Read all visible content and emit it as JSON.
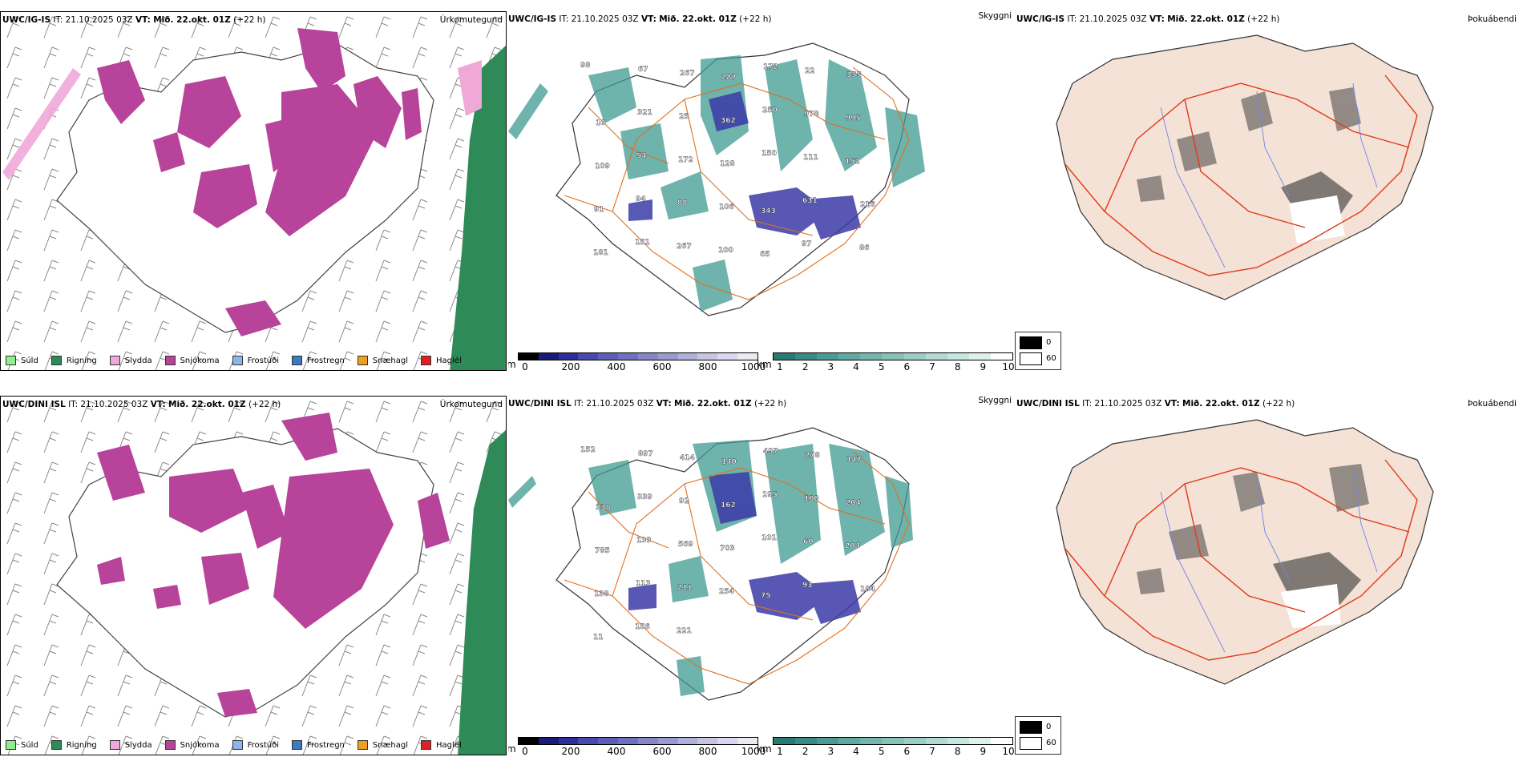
{
  "rows": [
    {
      "model": "UWC/IG-IS",
      "it_label": "IT:",
      "it_value": "21.10.2025 03Z",
      "vt_label": "VT:",
      "vt_value": "Mið. 22.okt. 01Z",
      "lead": "(+22 h)",
      "labels_mountain": [
        "98",
        "67",
        "267",
        "287",
        "172",
        "22",
        "355",
        "10",
        "321",
        "25",
        "362",
        "250",
        "978",
        "995",
        "109",
        "54",
        "172",
        "128",
        "150",
        "111",
        "152",
        "91",
        "94",
        "88",
        "106",
        "343",
        "631",
        "216",
        "181",
        "151",
        "267",
        "100",
        "65",
        "97",
        "86"
      ]
    },
    {
      "model": "UWC/DINI ISL",
      "it_label": "IT:",
      "it_value": "21.10.2025 03Z",
      "vt_label": "VT:",
      "vt_value": "Mið. 22.okt. 01Z",
      "lead": "(+22 h)",
      "labels_mountain": [
        "152",
        "897",
        "414",
        "140",
        "497",
        "278",
        "147",
        "338",
        "339",
        "92",
        "162",
        "195",
        "100",
        "204",
        "785",
        "133",
        "569",
        "703",
        "101",
        "60",
        "204",
        "138",
        "113",
        "211",
        "254",
        "75",
        "93",
        "184",
        "11",
        "156",
        "221"
      ]
    }
  ],
  "panel_titles": {
    "precip": "Úrkomutegund",
    "cloud": "Skyggni",
    "fog": "Þokuábendi"
  },
  "precip_legend": [
    {
      "label": "Súld",
      "color": "#90ee90"
    },
    {
      "label": "Rigning",
      "color": "#2e8b57"
    },
    {
      "label": "Slydda",
      "color": "#f0a8d8"
    },
    {
      "label": "Snjókoma",
      "color": "#b8439a"
    },
    {
      "label": "Frostúði",
      "color": "#87b8e8"
    },
    {
      "label": "Frostregn",
      "color": "#3a7ac0"
    },
    {
      "label": "Snæhagl",
      "color": "#f0a020"
    },
    {
      "label": "Haglél",
      "color": "#e02020"
    }
  ],
  "colors": {
    "snow": "#b8439a",
    "rain": "#2e8b57",
    "sleet": "#f0a8d8",
    "cloud_teal": "#3f9a92",
    "cloud_blue": "#3b3ba8",
    "road": "#e07020",
    "land_fog": "#f4e2d6",
    "road_fog": "#e03818",
    "river": "#6f86e8"
  },
  "colorbar_height": {
    "unit": "m",
    "ticks": [
      "0",
      "200",
      "400",
      "600",
      "800",
      "1000"
    ],
    "colors": [
      "#000000",
      "#1a1a78",
      "#2e2e9a",
      "#4848b0",
      "#5e5eb8",
      "#7070c0",
      "#8686c8",
      "#9a9ad0",
      "#b0b0da",
      "#c6c6e4",
      "#d8d8ee",
      "#ebebf6"
    ]
  },
  "colorbar_vis": {
    "unit": "km",
    "ticks": [
      "1",
      "2",
      "3",
      "4",
      "5",
      "6",
      "7",
      "8",
      "9",
      "10"
    ],
    "colors": [
      "#2a7a74",
      "#3a8a84",
      "#4b9a93",
      "#5faaa2",
      "#72b6ae",
      "#86c2ba",
      "#9ccec6",
      "#b2dad3",
      "#c8e6e0",
      "#dff1ec",
      "#ffffff"
    ]
  },
  "fog_legend": [
    {
      "label": "0",
      "color": "#000000"
    },
    {
      "label": "60",
      "color": "#ffffff"
    }
  ]
}
